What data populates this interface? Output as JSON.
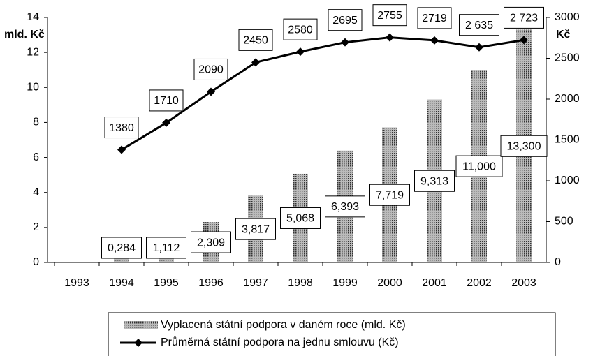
{
  "chart_data": {
    "type": "bar",
    "categories": [
      "1993",
      "1994",
      "1995",
      "1996",
      "1997",
      "1998",
      "1999",
      "2000",
      "2001",
      "2002",
      "2003"
    ],
    "ylabel": "mld. Kč",
    "y2label": "Kč",
    "ylim": [
      0,
      14
    ],
    "yticks": [
      0,
      2,
      4,
      6,
      8,
      10,
      12,
      14
    ],
    "y2lim": [
      0,
      3000
    ],
    "y2ticks": [
      0,
      500,
      1000,
      1500,
      2000,
      2500,
      3000
    ],
    "series": [
      {
        "name": "Vyplacená státní podpora v daném roce (mld. Kč)",
        "type": "bar",
        "color": "#555555",
        "values": [
          null,
          0.284,
          1.112,
          2.309,
          3.817,
          5.068,
          6.393,
          7.719,
          9.313,
          11.0,
          13.3
        ],
        "value_labels": [
          null,
          "0,284",
          "1,112",
          "2,309",
          "3,817",
          "5,068",
          "6,393",
          "7,719",
          "9,313",
          "11,000",
          "13,300"
        ]
      },
      {
        "name": "Průměrná státní podpora na jednu smlouvu (Kč)",
        "type": "line",
        "axis": "y2",
        "color": "#000000",
        "values": [
          null,
          1380,
          1710,
          2090,
          2450,
          2580,
          2695,
          2755,
          2719,
          2635,
          2723
        ],
        "value_labels": [
          null,
          "1380",
          "1710",
          "2090",
          "2450",
          "2580",
          "2695",
          "2755",
          "2719",
          "2 635",
          "2 723"
        ]
      }
    ]
  }
}
